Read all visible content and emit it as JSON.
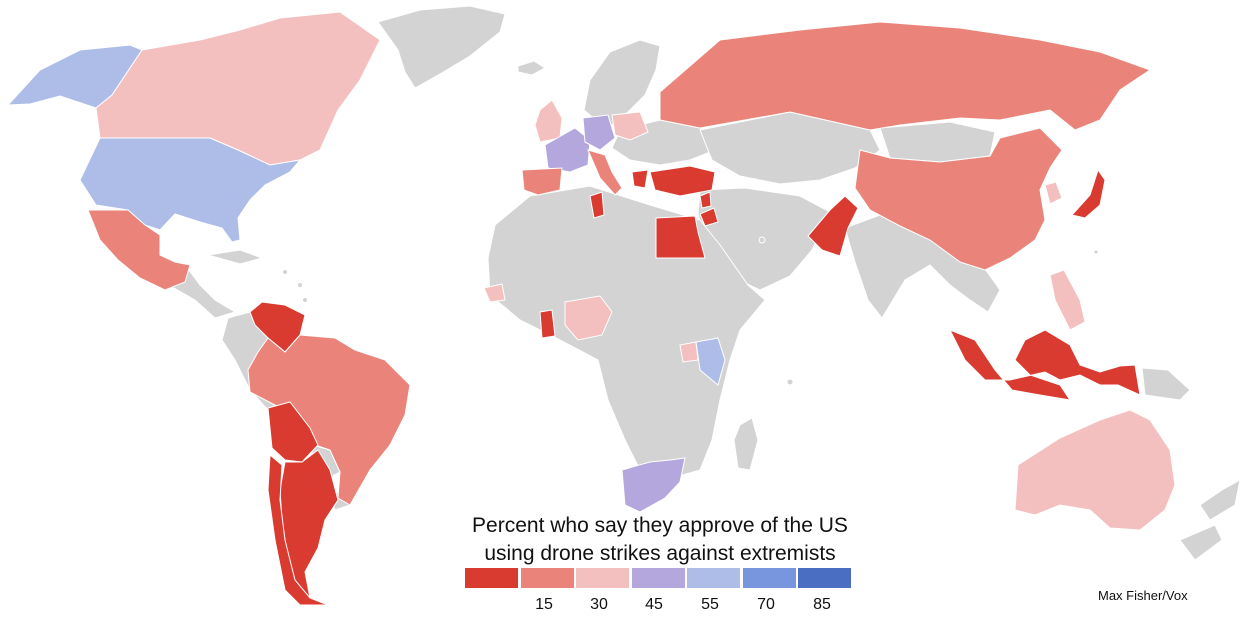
{
  "legend": {
    "title_line1": "Percent who say they approve of the US",
    "title_line2": "using drone strikes against extremists",
    "bins": [
      {
        "color": "#d93b30"
      },
      {
        "color": "#ea847a"
      },
      {
        "color": "#f4bfbf"
      },
      {
        "color": "#b3a7dd"
      },
      {
        "color": "#aebde8"
      },
      {
        "color": "#7896dd"
      },
      {
        "color": "#4a6ec2"
      }
    ],
    "ticks": [
      "15",
      "30",
      "45",
      "55",
      "70",
      "85"
    ]
  },
  "credit": "Max Fisher/Vox",
  "countries": [
    {
      "id": "usa",
      "bin": 4
    },
    {
      "id": "alaska",
      "bin": 4
    },
    {
      "id": "canada",
      "bin": 2
    },
    {
      "id": "mexico",
      "bin": 1
    },
    {
      "id": "venezuela",
      "bin": 0
    },
    {
      "id": "brazil",
      "bin": 1
    },
    {
      "id": "bolivia",
      "bin": 0
    },
    {
      "id": "argentina",
      "bin": 0
    },
    {
      "id": "chile",
      "bin": 0
    },
    {
      "id": "uk",
      "bin": 2
    },
    {
      "id": "france",
      "bin": 3
    },
    {
      "id": "germany",
      "bin": 3
    },
    {
      "id": "poland",
      "bin": 2
    },
    {
      "id": "spain",
      "bin": 1
    },
    {
      "id": "italy",
      "bin": 1
    },
    {
      "id": "greece",
      "bin": 0
    },
    {
      "id": "russia",
      "bin": 1
    },
    {
      "id": "turkey",
      "bin": 0
    },
    {
      "id": "tunisia",
      "bin": 0
    },
    {
      "id": "egypt",
      "bin": 0
    },
    {
      "id": "jordan",
      "bin": 0
    },
    {
      "id": "lebanon",
      "bin": 0
    },
    {
      "id": "pakistan",
      "bin": 0
    },
    {
      "id": "china",
      "bin": 1
    },
    {
      "id": "japan",
      "bin": 0
    },
    {
      "id": "southkorea",
      "bin": 2
    },
    {
      "id": "philippines",
      "bin": 2
    },
    {
      "id": "indonesia",
      "bin": 0
    },
    {
      "id": "australia",
      "bin": 2
    },
    {
      "id": "nigeria",
      "bin": 2
    },
    {
      "id": "ghana",
      "bin": 0
    },
    {
      "id": "senegal",
      "bin": 2
    },
    {
      "id": "uganda",
      "bin": 2
    },
    {
      "id": "kenya",
      "bin": 4
    },
    {
      "id": "southafrica",
      "bin": 3
    }
  ]
}
